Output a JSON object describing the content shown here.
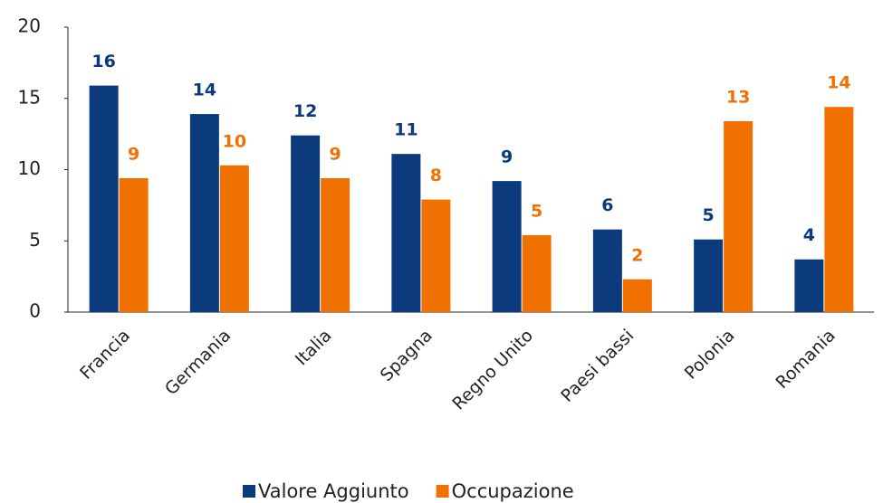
{
  "chart_data": {
    "type": "bar",
    "categories": [
      "Francia",
      "Germania",
      "Italia",
      "Spagna",
      "Regno Unito",
      "Paesi bassi",
      "Polonia",
      "Romania"
    ],
    "series": [
      {
        "name": "Valore Aggiunto",
        "color": "#0b3b7c",
        "values": [
          15.9,
          13.9,
          12.4,
          11.1,
          9.2,
          5.8,
          5.1,
          3.7
        ],
        "value_labels": [
          "16",
          "14",
          "12",
          "11",
          "9",
          "6",
          "5",
          "4"
        ]
      },
      {
        "name": "Occupazione",
        "color": "#f07000",
        "values": [
          9.4,
          10.3,
          9.4,
          7.9,
          5.4,
          2.3,
          13.4,
          14.4
        ],
        "value_labels": [
          "9",
          "10",
          "9",
          "8",
          "5",
          "2",
          "13",
          "14"
        ]
      }
    ],
    "ylim": [
      0,
      20
    ],
    "yticks": [
      0,
      5,
      10,
      15,
      20
    ],
    "grid": false,
    "legend": "bottom"
  }
}
